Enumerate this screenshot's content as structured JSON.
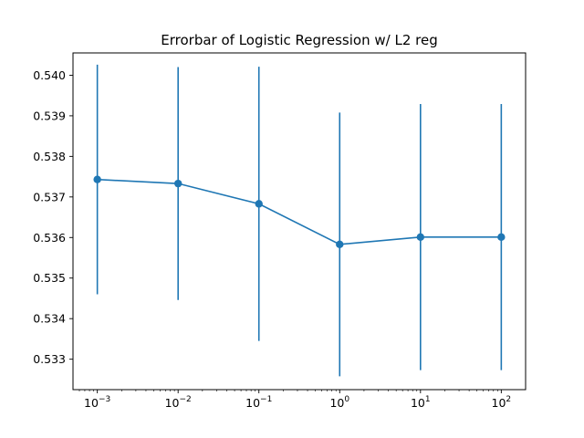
{
  "chart_data": {
    "type": "line",
    "title": "Errorbar of Logistic Regression w/ L2 reg",
    "xlabel": "",
    "ylabel": "",
    "x_scale": "log",
    "xlim": [
      0.0005,
      200
    ],
    "ylim": [
      0.53225,
      0.54055
    ],
    "x_ticks": [
      {
        "value": 0.001,
        "base": "10",
        "exp": "−3"
      },
      {
        "value": 0.01,
        "base": "10",
        "exp": "−2"
      },
      {
        "value": 0.1,
        "base": "10",
        "exp": "−1"
      },
      {
        "value": 1,
        "base": "10",
        "exp": "0"
      },
      {
        "value": 10,
        "base": "10",
        "exp": "1"
      },
      {
        "value": 100,
        "base": "10",
        "exp": "2"
      }
    ],
    "y_ticks": [
      0.533,
      0.534,
      0.535,
      0.536,
      0.537,
      0.538,
      0.539,
      0.54
    ],
    "y_tick_labels": [
      "0.533",
      "0.534",
      "0.535",
      "0.536",
      "0.537",
      "0.538",
      "0.539",
      "0.540"
    ],
    "grid": false,
    "series": [
      {
        "color": "#1f77b4",
        "x": [
          0.001,
          0.01,
          0.1,
          1,
          10,
          100
        ],
        "y": [
          0.53743,
          0.53733,
          0.53683,
          0.53583,
          0.53601,
          0.53601
        ],
        "yerr": [
          0.00283,
          0.00287,
          0.00338,
          0.00325,
          0.00328,
          0.00328
        ]
      }
    ]
  }
}
